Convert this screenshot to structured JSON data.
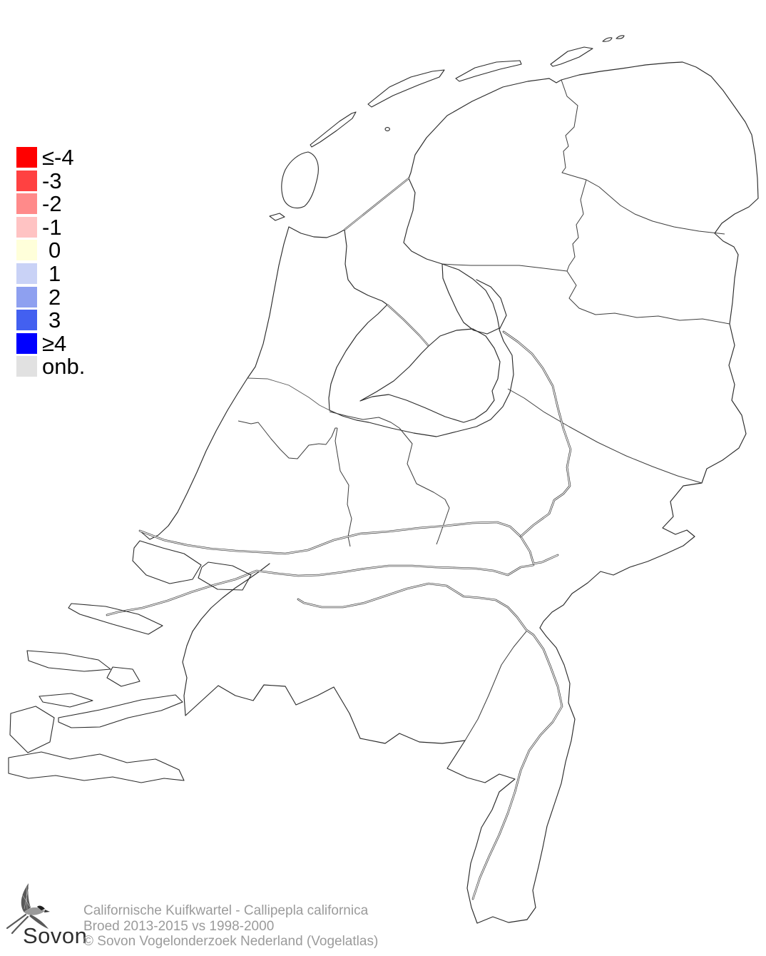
{
  "page": {
    "background": "#FFFFFF"
  },
  "legend": {
    "items": [
      {
        "label": "≤-4",
        "color": "#FF0000"
      },
      {
        "label": "-3",
        "color": "#FF4141"
      },
      {
        "label": "-2",
        "color": "#FF8A8A"
      },
      {
        "label": "-1",
        "color": "#FFC3C3"
      },
      {
        "label": "0",
        "color": "#FFFFDA"
      },
      {
        "label": "1",
        "color": "#C9D2F6"
      },
      {
        "label": "2",
        "color": "#8EA0F0"
      },
      {
        "label": "3",
        "color": "#4360F0"
      },
      {
        "label": "≥4",
        "color": "#0000FF"
      },
      {
        "label": "onb.",
        "color": "#E1E1E1"
      }
    ]
  },
  "map": {
    "line_color": "#2B2B2B",
    "background": "#FFFFFF"
  },
  "footer": {
    "logo_text": "Sovon",
    "species_line": "Californische Kuifkwartel - Callipepla californica",
    "period_line": "Broed 2013-2015 vs 1998-2000",
    "copyright_line": "© Sovon Vogelonderzoek Nederland (Vogelatlas)",
    "text_color": "#9B9B9B"
  }
}
